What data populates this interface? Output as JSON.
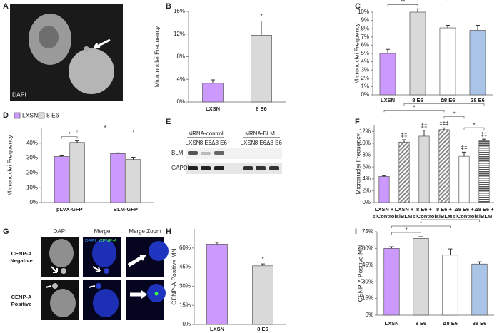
{
  "images": {
    "A": {
      "panel": "A",
      "label": "DAPI"
    },
    "E": {
      "panel": "E",
      "groups": [
        "siRNA-control",
        "siRNA-BLM"
      ],
      "lanes": [
        "LXSN",
        "8 E6",
        "Δ8 E6",
        "LXSN",
        "8 E6",
        "Δ8 E6"
      ],
      "rows": [
        "BLM",
        "GAPDH"
      ]
    },
    "G": {
      "panel": "G",
      "columns": [
        "DAPI",
        "Merge",
        "Merge Zoom"
      ],
      "channels": [
        "DAPI",
        "CENP-A"
      ],
      "rows": [
        [
          "CENP-A",
          "Negative"
        ],
        [
          "CENP-A",
          "Positive"
        ]
      ]
    }
  },
  "chart_data": [
    {
      "panel": "B",
      "type": "bar",
      "ylabel": "Micronuclei Frequency",
      "categories": [
        "LXSN",
        "8 E6"
      ],
      "values": [
        3.3,
        11.8
      ],
      "errors": [
        0.6,
        2.5
      ],
      "colors": [
        "#cc99ff",
        "#d9d9d9"
      ],
      "ylim": [
        0,
        16
      ],
      "yticks": [
        {
          "value": 0,
          "label": "0%"
        },
        {
          "value": 4,
          "label": "4%"
        },
        {
          "value": 8,
          "label": "8%"
        },
        {
          "value": 12,
          "label": "12%"
        },
        {
          "value": 16,
          "label": "16%"
        }
      ],
      "significance": [
        null,
        "*"
      ]
    },
    {
      "panel": "C",
      "type": "bar",
      "ylabel": "Micronuclei Frequency",
      "categories": [
        "LXSN",
        "8 E6",
        "Δ8 E6",
        "38 E6"
      ],
      "values": [
        5.0,
        10.0,
        8.1,
        7.8
      ],
      "errors": [
        0.5,
        0.4,
        0.3,
        0.6
      ],
      "colors": [
        "#cc99ff",
        "#d9d9d9",
        "#ffffff",
        "#a9c4e6"
      ],
      "ylim": [
        0,
        10
      ],
      "yticks": [
        {
          "value": 0,
          "label": "0%"
        },
        {
          "value": 1,
          "label": "1%"
        },
        {
          "value": 2,
          "label": "2%"
        },
        {
          "value": 3,
          "label": "3%"
        },
        {
          "value": 4,
          "label": "4%"
        },
        {
          "value": 5,
          "label": "5%"
        },
        {
          "value": 6,
          "label": "6%"
        },
        {
          "value": 7,
          "label": "7%"
        },
        {
          "value": 8,
          "label": "8%"
        },
        {
          "value": 9,
          "label": "9%"
        },
        {
          "value": 10,
          "label": "10%"
        }
      ],
      "brackets": [
        {
          "between": [
            0,
            1
          ],
          "text": "**"
        },
        {
          "between": [
            1,
            2
          ],
          "text": "*"
        },
        {
          "between": [
            0,
            2
          ],
          "text": "*"
        },
        {
          "between": [
            0,
            3
          ],
          "text": "*"
        }
      ]
    },
    {
      "panel": "D",
      "type": "bar",
      "ylabel": "Micronuclei Frequency",
      "categories": [
        "pLVX-GFP",
        "BLM-GFP"
      ],
      "series": [
        {
          "name": "LXSN",
          "color": "#cc99ff",
          "values": [
            31,
            33
          ],
          "errors": [
            0.5,
            0.5
          ]
        },
        {
          "name": "8 E6",
          "color": "#d9d9d9",
          "values": [
            40.5,
            29
          ],
          "errors": [
            1,
            1.5
          ]
        }
      ],
      "legend": "top-left",
      "ylim": [
        0,
        50
      ],
      "yticks": [
        {
          "value": 0,
          "label": "0%"
        },
        {
          "value": 10,
          "label": "10%"
        },
        {
          "value": 20,
          "label": "20%"
        },
        {
          "value": 30,
          "label": "30%"
        },
        {
          "value": 40,
          "label": "40%"
        }
      ],
      "brackets": [
        {
          "between": [
            0,
            1
          ],
          "text": "*"
        },
        {
          "between": [
            1,
            3
          ],
          "text": "*"
        }
      ]
    },
    {
      "panel": "F",
      "type": "bar",
      "ylabel": "Micronuclei Frequency",
      "categories": [
        [
          "LXSN +",
          "siControl"
        ],
        [
          "LXSN +",
          "siBLM"
        ],
        [
          "8 E6 +",
          "siControl"
        ],
        [
          "8 E6 +",
          "siBLM"
        ],
        [
          "Δ8 E6 +",
          "siControl"
        ],
        [
          "Δ8 E6 +",
          "siBLM"
        ]
      ],
      "values": [
        4.4,
        10.2,
        11.2,
        12.3,
        7.8,
        10.4
      ],
      "errors": [
        0.1,
        0.4,
        1.0,
        0.3,
        0.7,
        0.3
      ],
      "colors": [
        "#cc99ff",
        "#cc99ff",
        "#d9d9d9",
        "#d9d9d9",
        "#ffffff",
        "#d9d9d9"
      ],
      "hatch": [
        null,
        "diagonal",
        null,
        "diagonal",
        null,
        "horizontal"
      ],
      "ylim": [
        0,
        13
      ],
      "yticks": [
        {
          "value": 0,
          "label": "0%"
        },
        {
          "value": 2,
          "label": "2%"
        },
        {
          "value": 4,
          "label": "4%"
        },
        {
          "value": 6,
          "label": "6%"
        },
        {
          "value": 8,
          "label": "8%"
        },
        {
          "value": 10,
          "label": "10%"
        },
        {
          "value": 12,
          "label": "12%"
        }
      ],
      "significance": [
        null,
        "‡‡",
        "‡‡",
        "‡‡‡",
        "‡‡",
        "‡‡"
      ],
      "brackets": [
        {
          "between": [
            4,
            5
          ],
          "text": "*"
        },
        {
          "between": [
            3,
            4
          ],
          "text": "*"
        },
        {
          "between": [
            0,
            3
          ],
          "text": "*"
        },
        {
          "between": [
            1,
            5
          ],
          "text": "*"
        }
      ]
    },
    {
      "panel": "H",
      "type": "bar",
      "ylabel": "CENP-A Positive MN",
      "categories": [
        "LXSN",
        "8 E6"
      ],
      "values": [
        63,
        46
      ],
      "errors": [
        1.5,
        1.5
      ],
      "colors": [
        "#cc99ff",
        "#d9d9d9"
      ],
      "ylim": [
        0,
        75
      ],
      "yticks": [
        {
          "value": 0,
          "label": "0%"
        },
        {
          "value": 15,
          "label": "15%"
        },
        {
          "value": 30,
          "label": "30%"
        },
        {
          "value": 45,
          "label": "45%"
        },
        {
          "value": 60,
          "label": "60%"
        }
      ],
      "significance": [
        null,
        "*"
      ]
    },
    {
      "panel": "I",
      "type": "bar",
      "ylabel": "CENP-A Positive MN",
      "categories": [
        "LXSN",
        "8 E6",
        "Δ8 E6",
        "38 E6"
      ],
      "values": [
        60,
        69,
        54,
        46
      ],
      "errors": [
        1.5,
        1.5,
        5.5,
        2
      ],
      "colors": [
        "#cc99ff",
        "#d9d9d9",
        "#ffffff",
        "#a9c4e6"
      ],
      "ylim": [
        0,
        75
      ],
      "yticks": [
        {
          "value": 0,
          "label": "0%"
        },
        {
          "value": 15,
          "label": "15%"
        },
        {
          "value": 30,
          "label": "30%"
        },
        {
          "value": 45,
          "label": "45%"
        },
        {
          "value": 60,
          "label": "60%"
        },
        {
          "value": 75,
          "label": "75%"
        }
      ],
      "brackets": [
        {
          "between": [
            0,
            1
          ],
          "text": "*"
        },
        {
          "between": [
            0,
            2
          ],
          "text": "*"
        },
        {
          "between": [
            1,
            3
          ],
          "text": "*"
        }
      ]
    }
  ]
}
